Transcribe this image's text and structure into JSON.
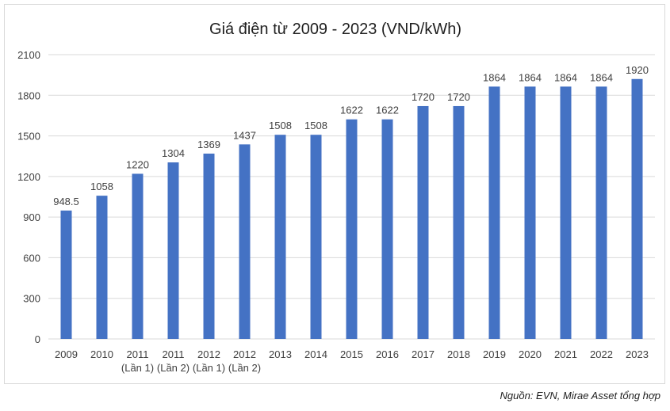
{
  "chart_data": {
    "type": "bar",
    "title": "Giá điện từ 2009 - 2023 (VND/kWh)",
    "xlabel": "",
    "ylabel": "",
    "categories": [
      [
        "2009"
      ],
      [
        "2010"
      ],
      [
        "2011",
        "(Lần 1)"
      ],
      [
        "2011",
        "(Lần 2)"
      ],
      [
        "2012",
        "(Lần 1)"
      ],
      [
        "2012",
        "(Lần 2)"
      ],
      [
        "2013"
      ],
      [
        "2014"
      ],
      [
        "2015"
      ],
      [
        "2016"
      ],
      [
        "2017"
      ],
      [
        "2018"
      ],
      [
        "2019"
      ],
      [
        "2020"
      ],
      [
        "2021"
      ],
      [
        "2022"
      ],
      [
        "2023"
      ]
    ],
    "values": [
      948.5,
      1058,
      1220,
      1304,
      1369,
      1437,
      1508,
      1508,
      1622,
      1622,
      1720,
      1720,
      1864,
      1864,
      1864,
      1864,
      1920
    ],
    "ylim": [
      0,
      2100
    ],
    "yticks": [
      0,
      300,
      600,
      900,
      1200,
      1500,
      1800,
      2100
    ],
    "grid": true,
    "legend": "none",
    "bar_color": "#4472c4",
    "grid_color": "#d9d9d9"
  },
  "source": "Nguồn: EVN, Mirae Asset tổng hợp"
}
